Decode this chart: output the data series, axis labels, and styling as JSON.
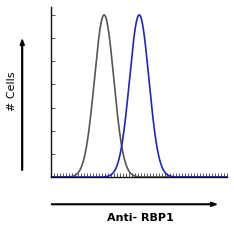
{
  "title": "",
  "xlabel": "Anti- RBP1",
  "ylabel": "# Cells",
  "bg_color": "#ffffff",
  "plot_bg_color": "#ffffff",
  "black_curve": {
    "mean": 0.3,
    "std": 0.055,
    "color": "#555555",
    "linewidth": 1.2
  },
  "blue_curve": {
    "mean": 0.5,
    "std": 0.055,
    "color": "#2222cc",
    "linewidth": 1.2
  },
  "xlim": [
    0,
    1
  ],
  "ylim": [
    0,
    1.05
  ],
  "x_ticks_count": 60,
  "y_ticks_count": 8,
  "figsize": [
    2.34,
    2.27
  ],
  "dpi": 100,
  "xlabel_fontsize": 8,
  "ylabel_fontsize": 8,
  "xlabel_fontweight": "bold",
  "ylabel_fontweight": "normal"
}
